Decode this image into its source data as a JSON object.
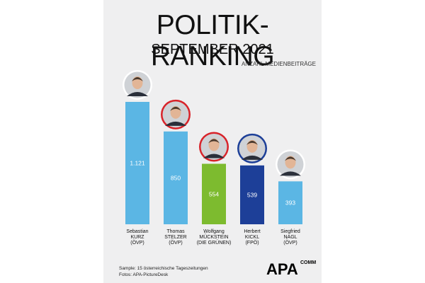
{
  "header": {
    "title": "POLITIK-RANKING",
    "subtitle": "SEPTEMBER 2021",
    "unit_label": "ANZAHL MEDIENBEITRÄGE"
  },
  "footer": {
    "sample": "Sample: 15 österreichische Tageszeitungen",
    "photos": "Fotos: APA-PictureDesk",
    "logo_text": "APA",
    "logo_sub": "COMM"
  },
  "chart_data": {
    "type": "bar",
    "title": "POLITIK-RANKING",
    "subtitle": "SEPTEMBER 2021",
    "ylabel": "ANZAHL MEDIENBEITRÄGE",
    "ylim": [
      0,
      1250
    ],
    "grid": false,
    "legend": "none",
    "categories": [
      [
        "Sebastian",
        "KURZ",
        "(ÖVP)"
      ],
      [
        "Thomas",
        "STELZER",
        "(ÖVP)"
      ],
      [
        "Wolfgang",
        "MÜCKSTEIN",
        "(DIE GRÜNEN)"
      ],
      [
        "Herbert",
        "KICKL",
        "(FPÖ)"
      ],
      [
        "Siegfried",
        "NAGL",
        "(ÖVP)"
      ]
    ],
    "values": [
      1121,
      850,
      554,
      539,
      393
    ],
    "value_labels": [
      "1.121",
      "850",
      "554",
      "539",
      "393"
    ],
    "colors": [
      "#5bb6e4",
      "#5bb6e4",
      "#7dbb2f",
      "#1d3f98",
      "#5bb6e4"
    ],
    "portrait_rings": [
      "#ffffff",
      "#d8232a",
      "#d8232a",
      "#1d3f98",
      "#ffffff"
    ]
  }
}
